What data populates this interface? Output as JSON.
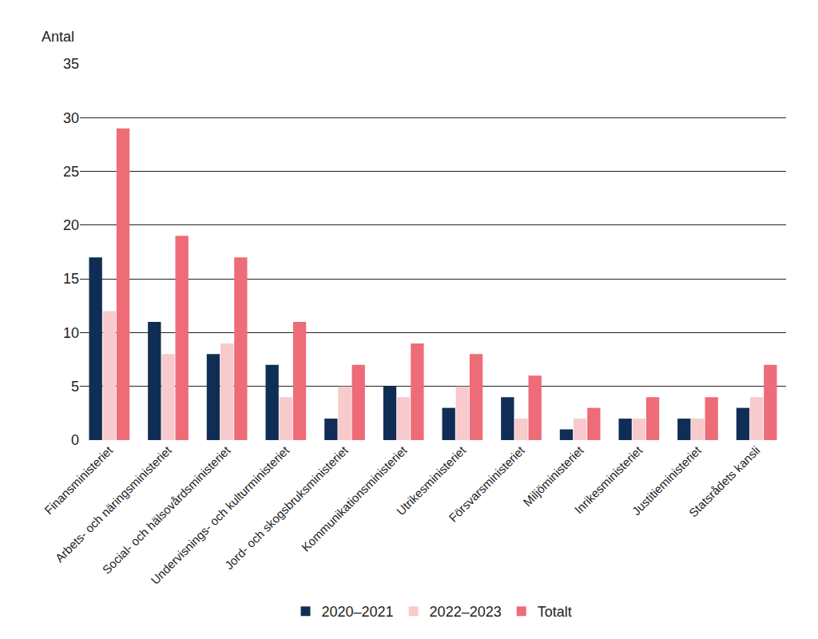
{
  "chart_data": {
    "type": "bar",
    "ylabel": "Antal",
    "categories": [
      "Finansministeriet",
      "Arbets- och näringsministeriet",
      "Social- och hälsovårdsministeriet",
      "Undervisnings- och kulturministeriet",
      "Jord- och skogsbruksministeriet",
      "Kommunikationsministeriet",
      "Utrikesministeriet",
      "Försvarsministeriet",
      "Miljöministeriet",
      "Inrikesministeriet",
      "Justitieministeriet",
      "Statsrådets kansli"
    ],
    "series": [
      {
        "name": "2020–2021",
        "color": "#102e55",
        "values": [
          17,
          11,
          8,
          7,
          2,
          5,
          3,
          4,
          1,
          2,
          2,
          3
        ]
      },
      {
        "name": "2022–2023",
        "color": "#f8cacc",
        "values": [
          12,
          8,
          9,
          4,
          5,
          4,
          5,
          2,
          2,
          2,
          2,
          4
        ]
      },
      {
        "name": "Totalt",
        "color": "#ee6b78",
        "values": [
          29,
          19,
          17,
          11,
          7,
          9,
          8,
          6,
          3,
          4,
          4,
          7
        ]
      }
    ],
    "ylim": [
      0,
      35
    ],
    "yticks": [
      0,
      5,
      10,
      15,
      20,
      25,
      30,
      35
    ],
    "grid": true,
    "legend": "bottom"
  }
}
